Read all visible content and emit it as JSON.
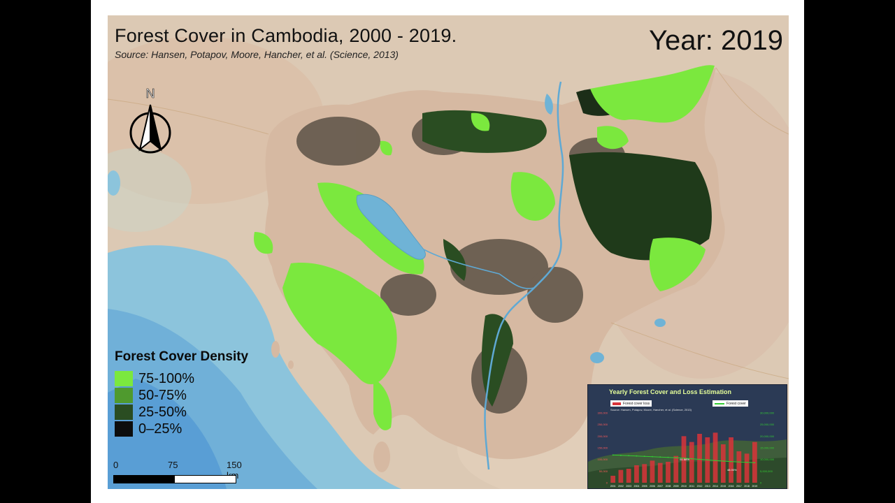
{
  "map": {
    "title": "Forest Cover in Cambodia, 2000 - 2019.",
    "source": "Source: Hansen, Potapov, Moore, Hancher, et al. (Science, 2013)",
    "year_label": "Year: 2019",
    "north_label": "N",
    "colors": {
      "sea": "#8cc4dc",
      "land": "#dcc9b4",
      "lake": "#6fb3d6",
      "dense": "#7be83e",
      "medium": "#4f9a2e",
      "low": "#2a4d22",
      "sparse": "#101610"
    }
  },
  "legend": {
    "title": "Forest Cover Density",
    "items": [
      {
        "label": "75-100%",
        "color": "#7be83e"
      },
      {
        "label": "50-75%",
        "color": "#4f9a2e"
      },
      {
        "label": "25-50%",
        "color": "#2a4d22"
      },
      {
        "label": "0–25%",
        "color": "#0d0d0d"
      }
    ]
  },
  "scalebar": {
    "labels": [
      "0",
      "75",
      "150 km"
    ]
  },
  "inset_chart": {
    "title": "Yearly Forest Cover and Loss Estimation",
    "loss_legend": "Forest cover loss",
    "cover_legend": "Forest cover",
    "source_note": "Source: Hansen, Potapov, Moore, Hancher, et al. (Science, 2013)",
    "chart_data": {
      "type": "bar",
      "categories": [
        "2001",
        "2002",
        "2003",
        "2004",
        "2005",
        "2006",
        "2007",
        "2008",
        "2009",
        "2010",
        "2011",
        "2012",
        "2013",
        "2014",
        "2015",
        "2016",
        "2017",
        "2018",
        "2019"
      ],
      "series": [
        {
          "name": "Forest cover loss",
          "type": "bar",
          "color": "#d9343a",
          "values": [
            30000,
            55000,
            60000,
            75000,
            80000,
            95000,
            85000,
            90000,
            115000,
            200000,
            175000,
            210000,
            195000,
            215000,
            165000,
            195000,
            135000,
            125000,
            175000
          ]
        },
        {
          "name": "Forest cover",
          "type": "line",
          "color": "#33cc33",
          "values": [
            11900000,
            11750000,
            11650000,
            11500000,
            11350000,
            11200000,
            11050000,
            10900000,
            10750000,
            10550000,
            10300000,
            10050000,
            9800000,
            9550000,
            9300000,
            9100000,
            8900000,
            8750000,
            8600000
          ]
        }
      ],
      "left_ticks": [
        "0",
        "50,000",
        "100,000",
        "150,000",
        "200,000",
        "250,000",
        "300,000"
      ],
      "right_ticks": [
        "0",
        "5,000,000",
        "10,000,000",
        "15,000,000",
        "20,000,000",
        "25,000,000",
        "30,000,000"
      ],
      "ylim_left": [
        0,
        300000
      ],
      "ylim_right": [
        0,
        30000000
      ],
      "annotations": [
        "61.88%",
        "48.00%"
      ]
    }
  }
}
